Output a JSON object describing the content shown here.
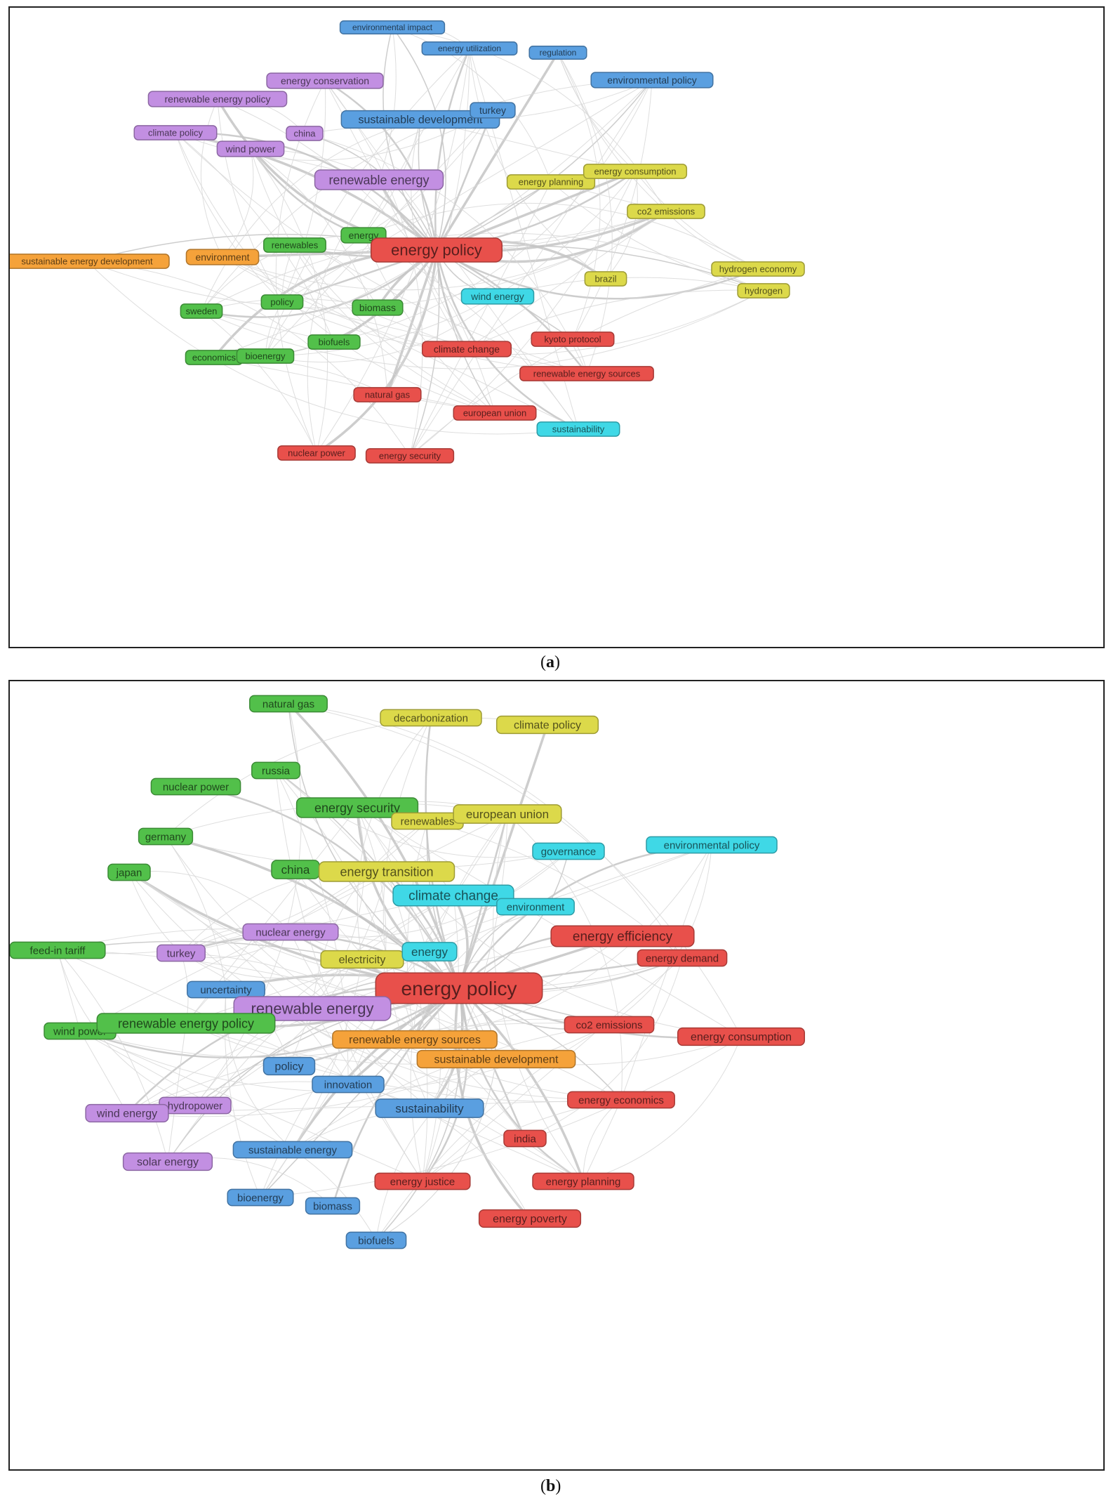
{
  "panels": [
    {
      "id": "a",
      "caption_letter": "a",
      "hub": "energy policy",
      "colors": {
        "red": "#e8504b",
        "green": "#52c04a",
        "blue": "#5a9fe0",
        "purple": "#c28fe2",
        "yellow": "#dcd94a",
        "orange": "#f5a23a",
        "cyan": "#3fd8e6"
      },
      "nodes": [
        {
          "label": "environmental impact",
          "color": "blue",
          "size": 12
        },
        {
          "label": "energy utilization",
          "color": "blue",
          "size": 12
        },
        {
          "label": "regulation",
          "color": "blue",
          "size": 12
        },
        {
          "label": "environmental policy",
          "color": "blue",
          "size": 14
        },
        {
          "label": "energy conservation",
          "color": "purple",
          "size": 14
        },
        {
          "label": "renewable energy policy",
          "color": "purple",
          "size": 14
        },
        {
          "label": "sustainable development",
          "color": "blue",
          "size": 16
        },
        {
          "label": "turkey",
          "color": "blue",
          "size": 14
        },
        {
          "label": "climate policy",
          "color": "purple",
          "size": 13
        },
        {
          "label": "china",
          "color": "purple",
          "size": 13
        },
        {
          "label": "wind power",
          "color": "purple",
          "size": 14
        },
        {
          "label": "renewable energy",
          "color": "purple",
          "size": 18
        },
        {
          "label": "energy planning",
          "color": "yellow",
          "size": 13
        },
        {
          "label": "energy consumption",
          "color": "yellow",
          "size": 13
        },
        {
          "label": "co2 emissions",
          "color": "yellow",
          "size": 13
        },
        {
          "label": "energy",
          "color": "green",
          "size": 14
        },
        {
          "label": "energy policy",
          "color": "red",
          "size": 22
        },
        {
          "label": "renewables",
          "color": "green",
          "size": 13
        },
        {
          "label": "environment",
          "color": "orange",
          "size": 14
        },
        {
          "label": "sustainable energy development",
          "color": "orange",
          "size": 13
        },
        {
          "label": "hydrogen economy",
          "color": "yellow",
          "size": 13
        },
        {
          "label": "brazil",
          "color": "yellow",
          "size": 13
        },
        {
          "label": "hydrogen",
          "color": "yellow",
          "size": 13
        },
        {
          "label": "policy",
          "color": "green",
          "size": 13
        },
        {
          "label": "biomass",
          "color": "green",
          "size": 14
        },
        {
          "label": "wind energy",
          "color": "cyan",
          "size": 14
        },
        {
          "label": "sweden",
          "color": "green",
          "size": 13
        },
        {
          "label": "biofuels",
          "color": "green",
          "size": 13
        },
        {
          "label": "kyoto protocol",
          "color": "red",
          "size": 13
        },
        {
          "label": "climate change",
          "color": "red",
          "size": 14
        },
        {
          "label": "economics",
          "color": "green",
          "size": 13
        },
        {
          "label": "bioenergy",
          "color": "green",
          "size": 13
        },
        {
          "label": "renewable energy sources",
          "color": "red",
          "size": 13
        },
        {
          "label": "natural gas",
          "color": "red",
          "size": 13
        },
        {
          "label": "european union",
          "color": "red",
          "size": 13
        },
        {
          "label": "sustainability",
          "color": "cyan",
          "size": 13
        },
        {
          "label": "nuclear power",
          "color": "red",
          "size": 13
        },
        {
          "label": "energy security",
          "color": "red",
          "size": 13
        }
      ]
    },
    {
      "id": "b",
      "caption_letter": "b",
      "hub": "energy policy",
      "colors": {
        "red": "#e8504b",
        "green": "#52c04a",
        "blue": "#5a9fe0",
        "purple": "#c28fe2",
        "yellow": "#dcd94a",
        "orange": "#f5a23a",
        "cyan": "#3fd8e6"
      },
      "nodes": [
        {
          "label": "natural gas",
          "color": "green",
          "size": 15
        },
        {
          "label": "decarbonization",
          "color": "yellow",
          "size": 15
        },
        {
          "label": "climate policy",
          "color": "yellow",
          "size": 16
        },
        {
          "label": "russia",
          "color": "green",
          "size": 15
        },
        {
          "label": "nuclear power",
          "color": "green",
          "size": 15
        },
        {
          "label": "energy security",
          "color": "green",
          "size": 18
        },
        {
          "label": "renewables",
          "color": "yellow",
          "size": 15
        },
        {
          "label": "european union",
          "color": "yellow",
          "size": 17
        },
        {
          "label": "germany",
          "color": "green",
          "size": 15
        },
        {
          "label": "governance",
          "color": "cyan",
          "size": 15
        },
        {
          "label": "environmental policy",
          "color": "cyan",
          "size": 15
        },
        {
          "label": "japan",
          "color": "green",
          "size": 15
        },
        {
          "label": "china",
          "color": "green",
          "size": 17
        },
        {
          "label": "energy transition",
          "color": "yellow",
          "size": 18
        },
        {
          "label": "climate change",
          "color": "cyan",
          "size": 19
        },
        {
          "label": "environment",
          "color": "cyan",
          "size": 15
        },
        {
          "label": "nuclear energy",
          "color": "purple",
          "size": 15
        },
        {
          "label": "energy efficiency",
          "color": "red",
          "size": 19
        },
        {
          "label": "feed-in tariff",
          "color": "green",
          "size": 15
        },
        {
          "label": "turkey",
          "color": "purple",
          "size": 15
        },
        {
          "label": "electricity",
          "color": "yellow",
          "size": 16
        },
        {
          "label": "energy",
          "color": "cyan",
          "size": 17
        },
        {
          "label": "energy demand",
          "color": "red",
          "size": 15
        },
        {
          "label": "uncertainty",
          "color": "blue",
          "size": 15
        },
        {
          "label": "energy policy",
          "color": "red",
          "size": 28
        },
        {
          "label": "renewable energy",
          "color": "purple",
          "size": 22
        },
        {
          "label": "wind power",
          "color": "green",
          "size": 15
        },
        {
          "label": "renewable energy policy",
          "color": "green",
          "size": 18
        },
        {
          "label": "co2 emissions",
          "color": "red",
          "size": 15
        },
        {
          "label": "energy consumption",
          "color": "red",
          "size": 16
        },
        {
          "label": "renewable energy sources",
          "color": "orange",
          "size": 16
        },
        {
          "label": "sustainable development",
          "color": "orange",
          "size": 16
        },
        {
          "label": "policy",
          "color": "blue",
          "size": 16
        },
        {
          "label": "innovation",
          "color": "blue",
          "size": 15
        },
        {
          "label": "hydropower",
          "color": "purple",
          "size": 15
        },
        {
          "label": "wind energy",
          "color": "purple",
          "size": 16
        },
        {
          "label": "sustainability",
          "color": "blue",
          "size": 17
        },
        {
          "label": "energy economics",
          "color": "red",
          "size": 15
        },
        {
          "label": "india",
          "color": "red",
          "size": 15
        },
        {
          "label": "sustainable energy",
          "color": "blue",
          "size": 15
        },
        {
          "label": "solar energy",
          "color": "purple",
          "size": 16
        },
        {
          "label": "energy justice",
          "color": "red",
          "size": 15
        },
        {
          "label": "energy planning",
          "color": "red",
          "size": 15
        },
        {
          "label": "bioenergy",
          "color": "blue",
          "size": 15
        },
        {
          "label": "biomass",
          "color": "blue",
          "size": 15
        },
        {
          "label": "energy poverty",
          "color": "red",
          "size": 16
        },
        {
          "label": "biofuels",
          "color": "blue",
          "size": 15
        }
      ]
    }
  ]
}
